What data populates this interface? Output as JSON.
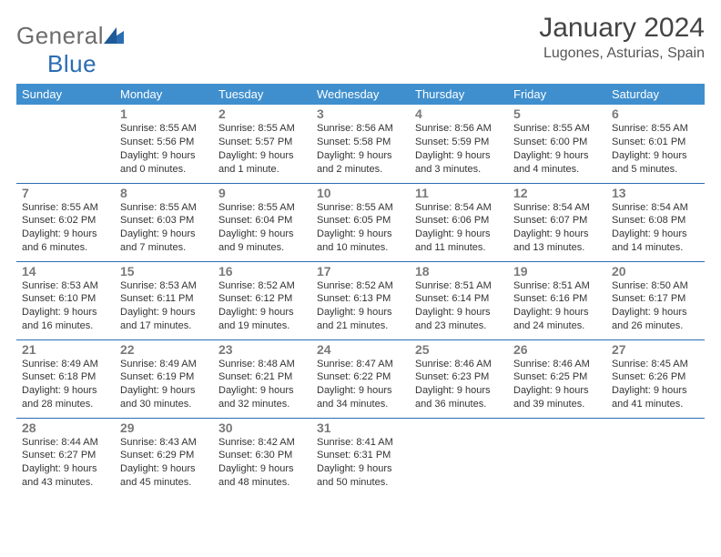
{
  "brand": {
    "part1": "General",
    "part2": "Blue"
  },
  "title": "January 2024",
  "subtitle": "Lugones, Asturias, Spain",
  "colors": {
    "header_bg": "#3f8fce",
    "header_text": "#ffffff",
    "row_border": "#2a6db3",
    "brand_gray": "#6d6d6d",
    "brand_blue": "#2a6db3",
    "daynum": "#7a7a7a",
    "body_text": "#333333"
  },
  "day_headers": [
    "Sunday",
    "Monday",
    "Tuesday",
    "Wednesday",
    "Thursday",
    "Friday",
    "Saturday"
  ],
  "weeks": [
    [
      {
        "n": "",
        "sunrise": "",
        "sunset": "",
        "daylight": "",
        "empty": true
      },
      {
        "n": "1",
        "sunrise": "Sunrise: 8:55 AM",
        "sunset": "Sunset: 5:56 PM",
        "daylight": "Daylight: 9 hours and 0 minutes."
      },
      {
        "n": "2",
        "sunrise": "Sunrise: 8:55 AM",
        "sunset": "Sunset: 5:57 PM",
        "daylight": "Daylight: 9 hours and 1 minute."
      },
      {
        "n": "3",
        "sunrise": "Sunrise: 8:56 AM",
        "sunset": "Sunset: 5:58 PM",
        "daylight": "Daylight: 9 hours and 2 minutes."
      },
      {
        "n": "4",
        "sunrise": "Sunrise: 8:56 AM",
        "sunset": "Sunset: 5:59 PM",
        "daylight": "Daylight: 9 hours and 3 minutes."
      },
      {
        "n": "5",
        "sunrise": "Sunrise: 8:55 AM",
        "sunset": "Sunset: 6:00 PM",
        "daylight": "Daylight: 9 hours and 4 minutes."
      },
      {
        "n": "6",
        "sunrise": "Sunrise: 8:55 AM",
        "sunset": "Sunset: 6:01 PM",
        "daylight": "Daylight: 9 hours and 5 minutes."
      }
    ],
    [
      {
        "n": "7",
        "sunrise": "Sunrise: 8:55 AM",
        "sunset": "Sunset: 6:02 PM",
        "daylight": "Daylight: 9 hours and 6 minutes."
      },
      {
        "n": "8",
        "sunrise": "Sunrise: 8:55 AM",
        "sunset": "Sunset: 6:03 PM",
        "daylight": "Daylight: 9 hours and 7 minutes."
      },
      {
        "n": "9",
        "sunrise": "Sunrise: 8:55 AM",
        "sunset": "Sunset: 6:04 PM",
        "daylight": "Daylight: 9 hours and 9 minutes."
      },
      {
        "n": "10",
        "sunrise": "Sunrise: 8:55 AM",
        "sunset": "Sunset: 6:05 PM",
        "daylight": "Daylight: 9 hours and 10 minutes."
      },
      {
        "n": "11",
        "sunrise": "Sunrise: 8:54 AM",
        "sunset": "Sunset: 6:06 PM",
        "daylight": "Daylight: 9 hours and 11 minutes."
      },
      {
        "n": "12",
        "sunrise": "Sunrise: 8:54 AM",
        "sunset": "Sunset: 6:07 PM",
        "daylight": "Daylight: 9 hours and 13 minutes."
      },
      {
        "n": "13",
        "sunrise": "Sunrise: 8:54 AM",
        "sunset": "Sunset: 6:08 PM",
        "daylight": "Daylight: 9 hours and 14 minutes."
      }
    ],
    [
      {
        "n": "14",
        "sunrise": "Sunrise: 8:53 AM",
        "sunset": "Sunset: 6:10 PM",
        "daylight": "Daylight: 9 hours and 16 minutes."
      },
      {
        "n": "15",
        "sunrise": "Sunrise: 8:53 AM",
        "sunset": "Sunset: 6:11 PM",
        "daylight": "Daylight: 9 hours and 17 minutes."
      },
      {
        "n": "16",
        "sunrise": "Sunrise: 8:52 AM",
        "sunset": "Sunset: 6:12 PM",
        "daylight": "Daylight: 9 hours and 19 minutes."
      },
      {
        "n": "17",
        "sunrise": "Sunrise: 8:52 AM",
        "sunset": "Sunset: 6:13 PM",
        "daylight": "Daylight: 9 hours and 21 minutes."
      },
      {
        "n": "18",
        "sunrise": "Sunrise: 8:51 AM",
        "sunset": "Sunset: 6:14 PM",
        "daylight": "Daylight: 9 hours and 23 minutes."
      },
      {
        "n": "19",
        "sunrise": "Sunrise: 8:51 AM",
        "sunset": "Sunset: 6:16 PM",
        "daylight": "Daylight: 9 hours and 24 minutes."
      },
      {
        "n": "20",
        "sunrise": "Sunrise: 8:50 AM",
        "sunset": "Sunset: 6:17 PM",
        "daylight": "Daylight: 9 hours and 26 minutes."
      }
    ],
    [
      {
        "n": "21",
        "sunrise": "Sunrise: 8:49 AM",
        "sunset": "Sunset: 6:18 PM",
        "daylight": "Daylight: 9 hours and 28 minutes."
      },
      {
        "n": "22",
        "sunrise": "Sunrise: 8:49 AM",
        "sunset": "Sunset: 6:19 PM",
        "daylight": "Daylight: 9 hours and 30 minutes."
      },
      {
        "n": "23",
        "sunrise": "Sunrise: 8:48 AM",
        "sunset": "Sunset: 6:21 PM",
        "daylight": "Daylight: 9 hours and 32 minutes."
      },
      {
        "n": "24",
        "sunrise": "Sunrise: 8:47 AM",
        "sunset": "Sunset: 6:22 PM",
        "daylight": "Daylight: 9 hours and 34 minutes."
      },
      {
        "n": "25",
        "sunrise": "Sunrise: 8:46 AM",
        "sunset": "Sunset: 6:23 PM",
        "daylight": "Daylight: 9 hours and 36 minutes."
      },
      {
        "n": "26",
        "sunrise": "Sunrise: 8:46 AM",
        "sunset": "Sunset: 6:25 PM",
        "daylight": "Daylight: 9 hours and 39 minutes."
      },
      {
        "n": "27",
        "sunrise": "Sunrise: 8:45 AM",
        "sunset": "Sunset: 6:26 PM",
        "daylight": "Daylight: 9 hours and 41 minutes."
      }
    ],
    [
      {
        "n": "28",
        "sunrise": "Sunrise: 8:44 AM",
        "sunset": "Sunset: 6:27 PM",
        "daylight": "Daylight: 9 hours and 43 minutes."
      },
      {
        "n": "29",
        "sunrise": "Sunrise: 8:43 AM",
        "sunset": "Sunset: 6:29 PM",
        "daylight": "Daylight: 9 hours and 45 minutes."
      },
      {
        "n": "30",
        "sunrise": "Sunrise: 8:42 AM",
        "sunset": "Sunset: 6:30 PM",
        "daylight": "Daylight: 9 hours and 48 minutes."
      },
      {
        "n": "31",
        "sunrise": "Sunrise: 8:41 AM",
        "sunset": "Sunset: 6:31 PM",
        "daylight": "Daylight: 9 hours and 50 minutes."
      },
      {
        "n": "",
        "sunrise": "",
        "sunset": "",
        "daylight": "",
        "empty": true
      },
      {
        "n": "",
        "sunrise": "",
        "sunset": "",
        "daylight": "",
        "empty": true
      },
      {
        "n": "",
        "sunrise": "",
        "sunset": "",
        "daylight": "",
        "empty": true
      }
    ]
  ]
}
